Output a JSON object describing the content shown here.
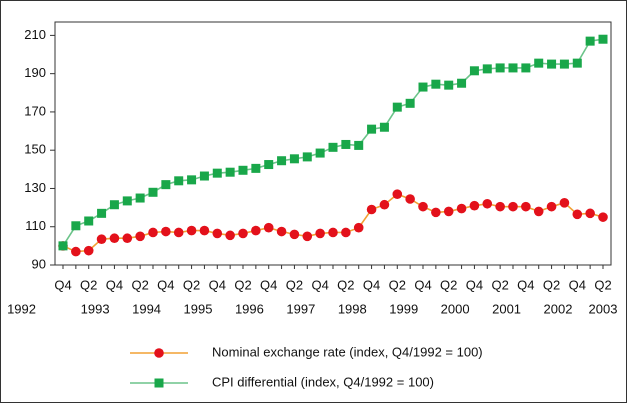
{
  "chart_data": {
    "type": "line",
    "categories": [
      "Q4",
      null,
      "Q2",
      null,
      "Q4",
      null,
      "Q2",
      null,
      "Q4",
      null,
      "Q2",
      null,
      "Q4",
      null,
      "Q2",
      null,
      "Q4",
      null,
      "Q2",
      null,
      "Q4",
      null,
      "Q2",
      null,
      "Q4",
      null,
      "Q2",
      null,
      "Q4",
      null,
      "Q2",
      null,
      "Q4",
      null,
      "Q2",
      null,
      "Q4",
      null,
      "Q2",
      null,
      "Q4",
      null,
      "Q2"
    ],
    "years": [
      "1992",
      null,
      "1993",
      null,
      null,
      null,
      "1994",
      null,
      null,
      null,
      "1995",
      null,
      null,
      null,
      "1996",
      null,
      null,
      null,
      "1997",
      null,
      null,
      null,
      "1998",
      null,
      null,
      null,
      "1999",
      null,
      null,
      null,
      "2000",
      null,
      null,
      null,
      "2001",
      null,
      null,
      null,
      "2002",
      null,
      null,
      null,
      "2003"
    ],
    "series": [
      {
        "name": "Nominal exchange rate (index, Q4/1992 = 100)",
        "color": "#e3111b",
        "line_color": "#f2a033",
        "marker": "circle",
        "values": [
          100,
          97,
          97.5,
          103.5,
          104,
          104,
          105,
          107,
          107.5,
          107,
          108,
          108,
          106.5,
          105.5,
          106.5,
          108,
          109.5,
          107.5,
          106,
          105,
          106.5,
          107,
          107,
          109.5,
          119,
          121.5,
          127,
          124.5,
          120.5,
          117.5,
          118,
          119.5,
          121,
          122,
          120.5,
          120.5,
          120.5,
          118,
          120.5,
          122.5,
          116.5,
          117,
          115
        ]
      },
      {
        "name": "CPI differential (index, Q4/1992 = 100)",
        "color": "#19a74a",
        "line_color": "#6cc48a",
        "marker": "square",
        "values": [
          100,
          110.5,
          113,
          117,
          121.5,
          123.5,
          125,
          128,
          132,
          134,
          134.5,
          136.5,
          138,
          138.5,
          139.5,
          140.5,
          142.5,
          144.5,
          145.5,
          146.5,
          148.5,
          151.5,
          153,
          152.5,
          161,
          162,
          172.5,
          174.5,
          183,
          184.5,
          184,
          185,
          191.5,
          192.5,
          193,
          193,
          193,
          195.5,
          195,
          195,
          195.5,
          207,
          208
        ]
      }
    ],
    "ylim": [
      90,
      217
    ],
    "yticks": [
      90,
      110,
      130,
      150,
      170,
      190,
      210
    ],
    "grid": false
  }
}
